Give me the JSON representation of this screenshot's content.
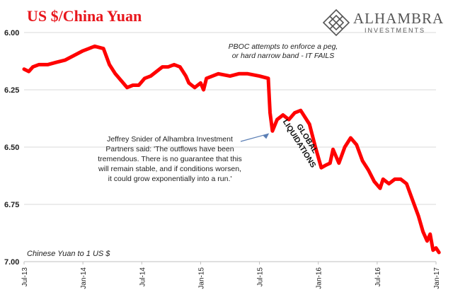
{
  "title": "US $/China Yuan",
  "logo": {
    "name": "ALHAMBRA",
    "sub": "INVESTMENTS",
    "mark": "diamond-lattice-logo"
  },
  "annotations": {
    "pboc": [
      "PBOC attempts to enforce a peg,",
      "or hard narrow band - IT FAILS"
    ],
    "global": [
      "GLOBAL",
      "LIQUIDATIONS"
    ],
    "quote": [
      "Jeffrey Snider of Alhambra Investment",
      "Partners said: 'The outflows have been",
      "tremendous. There is no guarantee that this",
      "will remain stable, and if conditions worsen,",
      "it could grow exponentially into a run.'"
    ]
  },
  "axis_note": "Chinese Yuan to 1 US $",
  "colors": {
    "title": "#e8161c",
    "line": "#ff0000",
    "grid": "#d9d9d9",
    "arrow": "#5b7fb5"
  },
  "chart_data": {
    "type": "line",
    "inverted_y": true,
    "ylim": [
      6.0,
      7.0
    ],
    "yticks": [
      "6.00",
      "6.25",
      "6.50",
      "6.75",
      "7.00"
    ],
    "xticks": [
      "Jul-13",
      "Jan-14",
      "Jul-14",
      "Jan-15",
      "Jul-15",
      "Jan-16",
      "Jul-16",
      "Jan-17"
    ],
    "series": [
      {
        "values": [
          [
            0.0,
            6.16
          ],
          [
            0.08,
            6.17
          ],
          [
            0.15,
            6.15
          ],
          [
            0.25,
            6.14
          ],
          [
            0.4,
            6.14
          ],
          [
            0.55,
            6.13
          ],
          [
            0.7,
            6.12
          ],
          [
            0.85,
            6.1
          ],
          [
            1.0,
            6.08
          ],
          [
            1.1,
            6.07
          ],
          [
            1.2,
            6.06
          ],
          [
            1.35,
            6.07
          ],
          [
            1.45,
            6.14
          ],
          [
            1.55,
            6.18
          ],
          [
            1.65,
            6.21
          ],
          [
            1.75,
            6.24
          ],
          [
            1.85,
            6.23
          ],
          [
            1.95,
            6.23
          ],
          [
            2.05,
            6.2
          ],
          [
            2.15,
            6.19
          ],
          [
            2.25,
            6.17
          ],
          [
            2.35,
            6.15
          ],
          [
            2.45,
            6.15
          ],
          [
            2.55,
            6.14
          ],
          [
            2.65,
            6.15
          ],
          [
            2.75,
            6.19
          ],
          [
            2.8,
            6.22
          ],
          [
            2.9,
            6.24
          ],
          [
            3.0,
            6.22
          ],
          [
            3.05,
            6.25
          ],
          [
            3.1,
            6.2
          ],
          [
            3.2,
            6.19
          ],
          [
            3.3,
            6.18
          ],
          [
            3.5,
            6.19
          ],
          [
            3.65,
            6.18
          ],
          [
            3.8,
            6.18
          ],
          [
            4.0,
            6.19
          ],
          [
            4.15,
            6.2
          ],
          [
            4.18,
            6.35
          ],
          [
            4.22,
            6.43
          ],
          [
            4.3,
            6.38
          ],
          [
            4.4,
            6.36
          ],
          [
            4.5,
            6.38
          ],
          [
            4.6,
            6.35
          ],
          [
            4.7,
            6.34
          ],
          [
            4.85,
            6.4
          ],
          [
            4.95,
            6.5
          ],
          [
            5.05,
            6.59
          ],
          [
            5.12,
            6.58
          ],
          [
            5.2,
            6.57
          ],
          [
            5.25,
            6.51
          ],
          [
            5.35,
            6.57
          ],
          [
            5.45,
            6.5
          ],
          [
            5.55,
            6.46
          ],
          [
            5.65,
            6.49
          ],
          [
            5.75,
            6.56
          ],
          [
            5.85,
            6.6
          ],
          [
            5.95,
            6.65
          ],
          [
            6.05,
            6.68
          ],
          [
            6.1,
            6.64
          ],
          [
            6.2,
            6.66
          ],
          [
            6.3,
            6.64
          ],
          [
            6.4,
            6.64
          ],
          [
            6.5,
            6.66
          ],
          [
            6.6,
            6.73
          ],
          [
            6.7,
            6.8
          ],
          [
            6.78,
            6.87
          ],
          [
            6.85,
            6.91
          ],
          [
            6.9,
            6.88
          ],
          [
            6.95,
            6.95
          ],
          [
            7.0,
            6.94
          ],
          [
            7.05,
            6.96
          ]
        ]
      }
    ]
  }
}
